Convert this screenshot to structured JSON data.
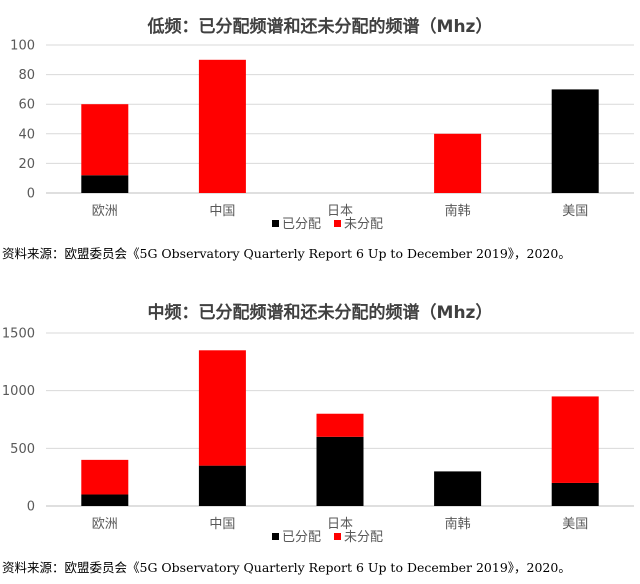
{
  "colors": {
    "allocated": "#000000",
    "unallocated": "#ff0000"
  },
  "chart_data": [
    {
      "type": "bar",
      "stacked": true,
      "title": "低频：已分配频谱和还未分配的频谱（Mhz）",
      "categories": [
        "欧洲",
        "中国",
        "日本",
        "南韩",
        "美国"
      ],
      "series": [
        {
          "name": "已分配",
          "values": [
            12,
            0,
            0,
            0,
            70
          ]
        },
        {
          "name": "未分配",
          "values": [
            48,
            90,
            0,
            40,
            0
          ]
        }
      ],
      "ylim": [
        0,
        100
      ],
      "yticks": [
        "0",
        "20",
        "40",
        "60",
        "80",
        "100"
      ],
      "grid": true,
      "legend": "bottom",
      "source": "资料来源：欧盟委员会《5G Observatory Quarterly Report 6 Up to December 2019》，2020。"
    },
    {
      "type": "bar",
      "stacked": true,
      "title": "中频：已分配频谱和还未分配的频谱（Mhz）",
      "categories": [
        "欧洲",
        "中国",
        "日本",
        "南韩",
        "美国"
      ],
      "series": [
        {
          "name": "已分配",
          "values": [
            100,
            350,
            600,
            300,
            200
          ]
        },
        {
          "name": "未分配",
          "values": [
            300,
            1000,
            200,
            0,
            750
          ]
        }
      ],
      "ylim": [
        0,
        1500
      ],
      "yticks": [
        "0",
        "500",
        "1000",
        "1500"
      ],
      "grid": true,
      "legend": "bottom",
      "source": "资料来源：欧盟委员会《5G Observatory Quarterly Report 6 Up to December 2019》，2020。"
    }
  ]
}
